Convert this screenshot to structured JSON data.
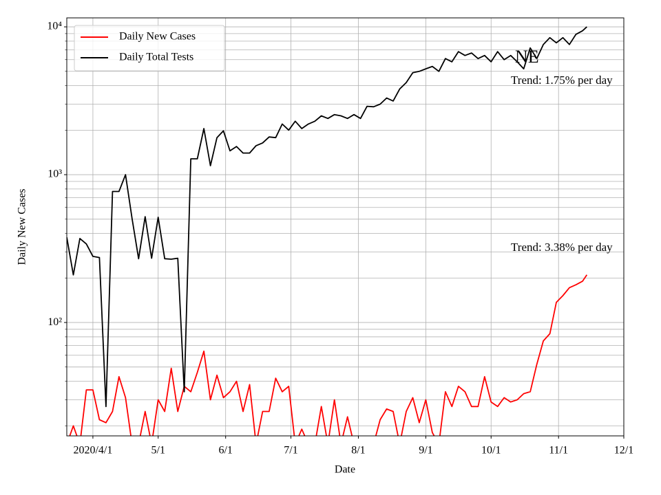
{
  "chart_data": {
    "type": "line",
    "xlabel": "Date",
    "ylabel": "Daily New Cases",
    "log_y": true,
    "grid": true,
    "minor_grid": true,
    "legend": "upper left",
    "x": [
      "2020-03-20",
      "2020-03-23",
      "2020-03-26",
      "2020-03-29",
      "2020-04-01",
      "2020-04-04",
      "2020-04-07",
      "2020-04-10",
      "2020-04-13",
      "2020-04-16",
      "2020-04-19",
      "2020-04-22",
      "2020-04-25",
      "2020-04-28",
      "2020-05-01",
      "2020-05-04",
      "2020-05-07",
      "2020-05-10",
      "2020-05-13",
      "2020-05-16",
      "2020-05-19",
      "2020-05-22",
      "2020-05-25",
      "2020-05-28",
      "2020-05-31",
      "2020-06-03",
      "2020-06-06",
      "2020-06-09",
      "2020-06-12",
      "2020-06-15",
      "2020-06-18",
      "2020-06-21",
      "2020-06-24",
      "2020-06-27",
      "2020-06-30",
      "2020-07-03",
      "2020-07-06",
      "2020-07-09",
      "2020-07-12",
      "2020-07-15",
      "2020-07-18",
      "2020-07-21",
      "2020-07-24",
      "2020-07-27",
      "2020-07-30",
      "2020-08-02",
      "2020-08-05",
      "2020-08-08",
      "2020-08-11",
      "2020-08-14",
      "2020-08-17",
      "2020-08-20",
      "2020-08-23",
      "2020-08-26",
      "2020-08-29",
      "2020-09-01",
      "2020-09-04",
      "2020-09-07",
      "2020-09-10",
      "2020-09-13",
      "2020-09-16",
      "2020-09-19",
      "2020-09-22",
      "2020-09-25",
      "2020-09-28",
      "2020-10-01",
      "2020-10-04",
      "2020-10-07",
      "2020-10-10",
      "2020-10-13",
      "2020-10-16",
      "2020-10-19",
      "2020-10-22",
      "2020-10-25",
      "2020-10-28",
      "2020-10-31",
      "2020-11-03",
      "2020-11-06",
      "2020-11-09",
      "2020-11-12",
      "2020-11-14"
    ],
    "series": [
      {
        "name": "Daily New Cases",
        "color": "#ff0000",
        "values": [
          15,
          20,
          15,
          35,
          35,
          22,
          21,
          25,
          43,
          31,
          15,
          15,
          25,
          15,
          30,
          25,
          49,
          25,
          37,
          34,
          46,
          64,
          30,
          44,
          31,
          34,
          40,
          25,
          38,
          15,
          25,
          25,
          42,
          34,
          37,
          15,
          19,
          15,
          15,
          27,
          15,
          30,
          15,
          23,
          15,
          15,
          15,
          15,
          22,
          26,
          25,
          15,
          25,
          31,
          21,
          30,
          18,
          15,
          34,
          27,
          37,
          34,
          27,
          27,
          43,
          29,
          27,
          31,
          29,
          30,
          33,
          34,
          52,
          75,
          84,
          137,
          152,
          172,
          180,
          190,
          210
        ]
      },
      {
        "name": "Daily Total Tests",
        "color": "#000000",
        "values": [
          377,
          210,
          370,
          340,
          280,
          275,
          27,
          770,
          770,
          1000,
          505,
          270,
          520,
          272,
          515,
          270,
          268,
          272,
          34,
          1280,
          1280,
          2050,
          1150,
          1780,
          1980,
          1450,
          1550,
          1400,
          1400,
          1570,
          1640,
          1800,
          1780,
          2200,
          2000,
          2300,
          2050,
          2200,
          2300,
          2500,
          2400,
          2550,
          2500,
          2400,
          2550,
          2400,
          2900,
          2880,
          3000,
          3300,
          3150,
          3800,
          4200,
          4900,
          5000,
          5200,
          5400,
          5000,
          6100,
          5800,
          6800,
          6400,
          6650,
          6100,
          6400,
          5800,
          6800,
          6000,
          6400,
          5800,
          5200,
          7200,
          6100,
          7600,
          8450,
          7800,
          8450,
          7600,
          8900,
          9400,
          10000
        ]
      }
    ],
    "xlim": [
      "2020-03-20",
      "2020-12-01"
    ],
    "xticks": [
      {
        "value": "2020-04-01",
        "label": "2020/4/1"
      },
      {
        "value": "2020-05-01",
        "label": "5/1"
      },
      {
        "value": "2020-06-01",
        "label": "6/1"
      },
      {
        "value": "2020-07-01",
        "label": "7/1"
      },
      {
        "value": "2020-08-01",
        "label": "8/1"
      },
      {
        "value": "2020-09-01",
        "label": "9/1"
      },
      {
        "value": "2020-10-01",
        "label": "10/1"
      },
      {
        "value": "2020-11-01",
        "label": "11/1"
      },
      {
        "value": "2020-12-01",
        "label": "12/1"
      }
    ],
    "ylim": [
      17.1,
      11500
    ],
    "yticks": [
      {
        "value": 100,
        "label": "10²"
      },
      {
        "value": 1000,
        "label": "10³"
      },
      {
        "value": 10000,
        "label": "10⁴"
      }
    ],
    "annotations": [
      "NE",
      "Trend: 1.75% per day",
      "Trend: 3.38% per day"
    ]
  }
}
